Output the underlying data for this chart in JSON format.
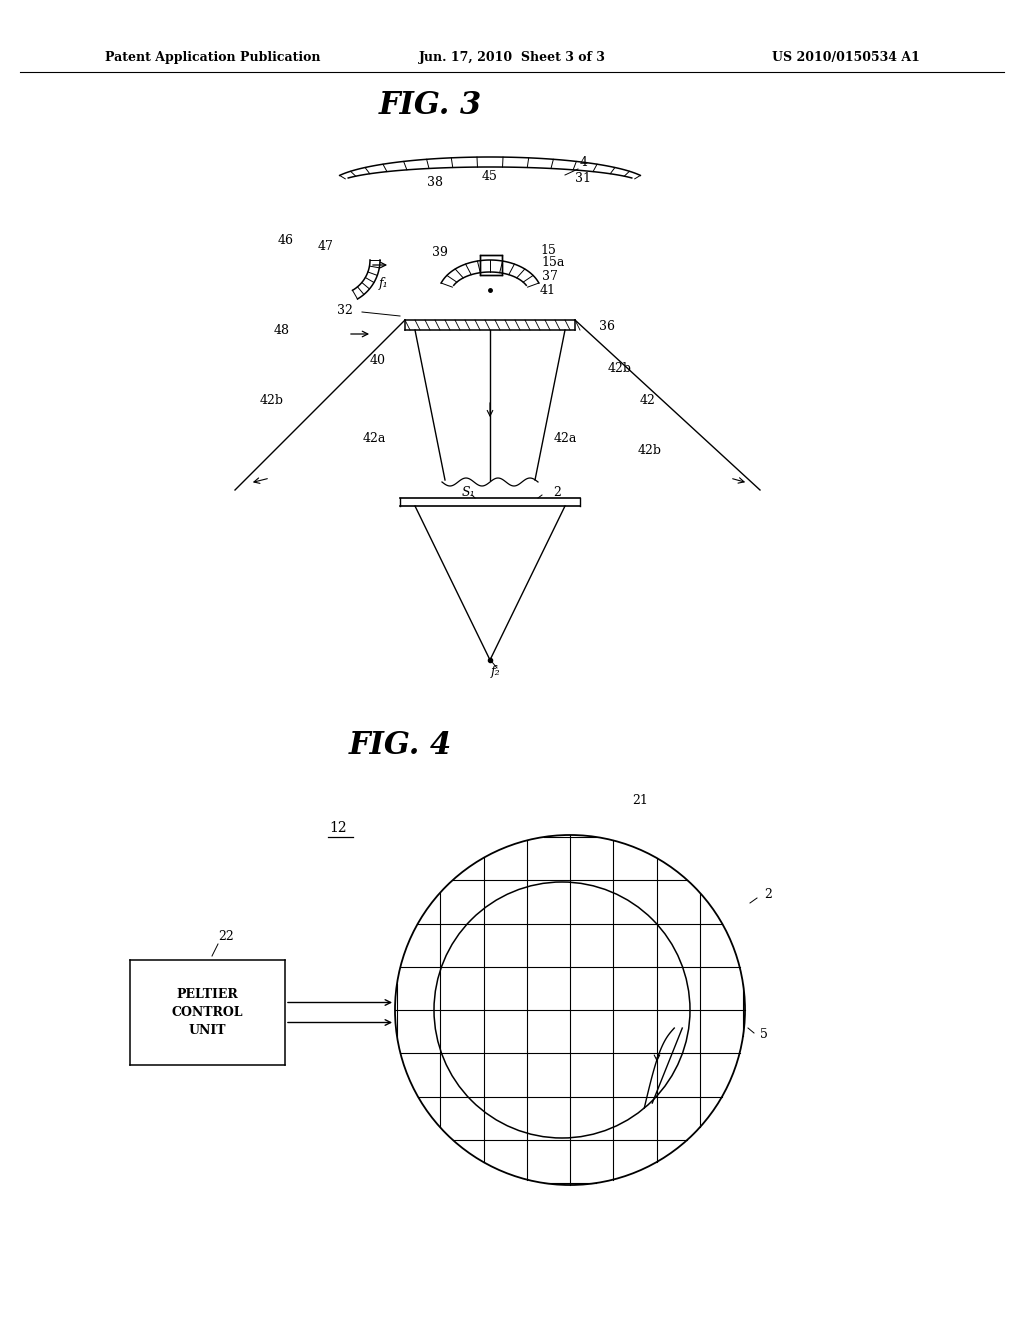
{
  "background_color": "#ffffff",
  "header_left": "Patent Application Publication",
  "header_center": "Jun. 17, 2010  Sheet 3 of 3",
  "header_right": "US 2010/0150534 A1",
  "fig3_title": "FIG. 3",
  "fig4_title": "FIG. 4"
}
